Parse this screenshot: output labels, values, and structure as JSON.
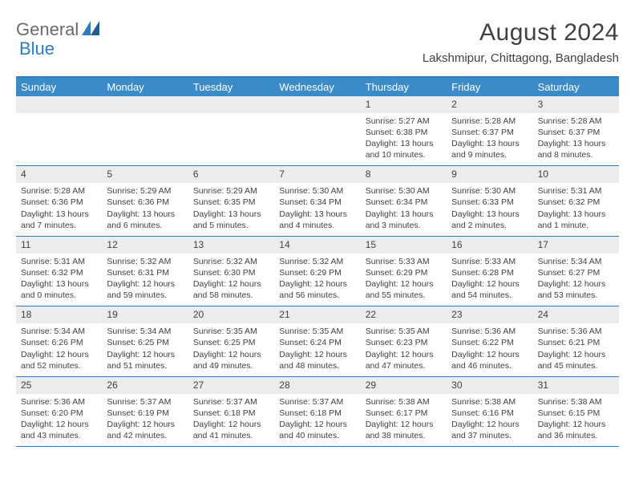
{
  "brand": {
    "part1": "General",
    "part2": "Blue"
  },
  "title": "August 2024",
  "subtitle": "Lakshmipur, Chittagong, Bangladesh",
  "colors": {
    "header_bg": "#3b8bc9",
    "border": "#2d7cc0",
    "daynum_bg": "#ececec",
    "text": "#404040",
    "white": "#ffffff"
  },
  "fonts": {
    "title": 30,
    "subtitle": 15,
    "dayhead": 13,
    "daynum": 12,
    "detail": 10.5
  },
  "dayNames": [
    "Sunday",
    "Monday",
    "Tuesday",
    "Wednesday",
    "Thursday",
    "Friday",
    "Saturday"
  ],
  "weeks": [
    [
      null,
      null,
      null,
      null,
      {
        "n": "1",
        "sunrise": "Sunrise: 5:27 AM",
        "sunset": "Sunset: 6:38 PM",
        "day1": "Daylight: 13 hours",
        "day2": "and 10 minutes."
      },
      {
        "n": "2",
        "sunrise": "Sunrise: 5:28 AM",
        "sunset": "Sunset: 6:37 PM",
        "day1": "Daylight: 13 hours",
        "day2": "and 9 minutes."
      },
      {
        "n": "3",
        "sunrise": "Sunrise: 5:28 AM",
        "sunset": "Sunset: 6:37 PM",
        "day1": "Daylight: 13 hours",
        "day2": "and 8 minutes."
      }
    ],
    [
      {
        "n": "4",
        "sunrise": "Sunrise: 5:28 AM",
        "sunset": "Sunset: 6:36 PM",
        "day1": "Daylight: 13 hours",
        "day2": "and 7 minutes."
      },
      {
        "n": "5",
        "sunrise": "Sunrise: 5:29 AM",
        "sunset": "Sunset: 6:36 PM",
        "day1": "Daylight: 13 hours",
        "day2": "and 6 minutes."
      },
      {
        "n": "6",
        "sunrise": "Sunrise: 5:29 AM",
        "sunset": "Sunset: 6:35 PM",
        "day1": "Daylight: 13 hours",
        "day2": "and 5 minutes."
      },
      {
        "n": "7",
        "sunrise": "Sunrise: 5:30 AM",
        "sunset": "Sunset: 6:34 PM",
        "day1": "Daylight: 13 hours",
        "day2": "and 4 minutes."
      },
      {
        "n": "8",
        "sunrise": "Sunrise: 5:30 AM",
        "sunset": "Sunset: 6:34 PM",
        "day1": "Daylight: 13 hours",
        "day2": "and 3 minutes."
      },
      {
        "n": "9",
        "sunrise": "Sunrise: 5:30 AM",
        "sunset": "Sunset: 6:33 PM",
        "day1": "Daylight: 13 hours",
        "day2": "and 2 minutes."
      },
      {
        "n": "10",
        "sunrise": "Sunrise: 5:31 AM",
        "sunset": "Sunset: 6:32 PM",
        "day1": "Daylight: 13 hours",
        "day2": "and 1 minute."
      }
    ],
    [
      {
        "n": "11",
        "sunrise": "Sunrise: 5:31 AM",
        "sunset": "Sunset: 6:32 PM",
        "day1": "Daylight: 13 hours",
        "day2": "and 0 minutes."
      },
      {
        "n": "12",
        "sunrise": "Sunrise: 5:32 AM",
        "sunset": "Sunset: 6:31 PM",
        "day1": "Daylight: 12 hours",
        "day2": "and 59 minutes."
      },
      {
        "n": "13",
        "sunrise": "Sunrise: 5:32 AM",
        "sunset": "Sunset: 6:30 PM",
        "day1": "Daylight: 12 hours",
        "day2": "and 58 minutes."
      },
      {
        "n": "14",
        "sunrise": "Sunrise: 5:32 AM",
        "sunset": "Sunset: 6:29 PM",
        "day1": "Daylight: 12 hours",
        "day2": "and 56 minutes."
      },
      {
        "n": "15",
        "sunrise": "Sunrise: 5:33 AM",
        "sunset": "Sunset: 6:29 PM",
        "day1": "Daylight: 12 hours",
        "day2": "and 55 minutes."
      },
      {
        "n": "16",
        "sunrise": "Sunrise: 5:33 AM",
        "sunset": "Sunset: 6:28 PM",
        "day1": "Daylight: 12 hours",
        "day2": "and 54 minutes."
      },
      {
        "n": "17",
        "sunrise": "Sunrise: 5:34 AM",
        "sunset": "Sunset: 6:27 PM",
        "day1": "Daylight: 12 hours",
        "day2": "and 53 minutes."
      }
    ],
    [
      {
        "n": "18",
        "sunrise": "Sunrise: 5:34 AM",
        "sunset": "Sunset: 6:26 PM",
        "day1": "Daylight: 12 hours",
        "day2": "and 52 minutes."
      },
      {
        "n": "19",
        "sunrise": "Sunrise: 5:34 AM",
        "sunset": "Sunset: 6:25 PM",
        "day1": "Daylight: 12 hours",
        "day2": "and 51 minutes."
      },
      {
        "n": "20",
        "sunrise": "Sunrise: 5:35 AM",
        "sunset": "Sunset: 6:25 PM",
        "day1": "Daylight: 12 hours",
        "day2": "and 49 minutes."
      },
      {
        "n": "21",
        "sunrise": "Sunrise: 5:35 AM",
        "sunset": "Sunset: 6:24 PM",
        "day1": "Daylight: 12 hours",
        "day2": "and 48 minutes."
      },
      {
        "n": "22",
        "sunrise": "Sunrise: 5:35 AM",
        "sunset": "Sunset: 6:23 PM",
        "day1": "Daylight: 12 hours",
        "day2": "and 47 minutes."
      },
      {
        "n": "23",
        "sunrise": "Sunrise: 5:36 AM",
        "sunset": "Sunset: 6:22 PM",
        "day1": "Daylight: 12 hours",
        "day2": "and 46 minutes."
      },
      {
        "n": "24",
        "sunrise": "Sunrise: 5:36 AM",
        "sunset": "Sunset: 6:21 PM",
        "day1": "Daylight: 12 hours",
        "day2": "and 45 minutes."
      }
    ],
    [
      {
        "n": "25",
        "sunrise": "Sunrise: 5:36 AM",
        "sunset": "Sunset: 6:20 PM",
        "day1": "Daylight: 12 hours",
        "day2": "and 43 minutes."
      },
      {
        "n": "26",
        "sunrise": "Sunrise: 5:37 AM",
        "sunset": "Sunset: 6:19 PM",
        "day1": "Daylight: 12 hours",
        "day2": "and 42 minutes."
      },
      {
        "n": "27",
        "sunrise": "Sunrise: 5:37 AM",
        "sunset": "Sunset: 6:18 PM",
        "day1": "Daylight: 12 hours",
        "day2": "and 41 minutes."
      },
      {
        "n": "28",
        "sunrise": "Sunrise: 5:37 AM",
        "sunset": "Sunset: 6:18 PM",
        "day1": "Daylight: 12 hours",
        "day2": "and 40 minutes."
      },
      {
        "n": "29",
        "sunrise": "Sunrise: 5:38 AM",
        "sunset": "Sunset: 6:17 PM",
        "day1": "Daylight: 12 hours",
        "day2": "and 38 minutes."
      },
      {
        "n": "30",
        "sunrise": "Sunrise: 5:38 AM",
        "sunset": "Sunset: 6:16 PM",
        "day1": "Daylight: 12 hours",
        "day2": "and 37 minutes."
      },
      {
        "n": "31",
        "sunrise": "Sunrise: 5:38 AM",
        "sunset": "Sunset: 6:15 PM",
        "day1": "Daylight: 12 hours",
        "day2": "and 36 minutes."
      }
    ]
  ]
}
